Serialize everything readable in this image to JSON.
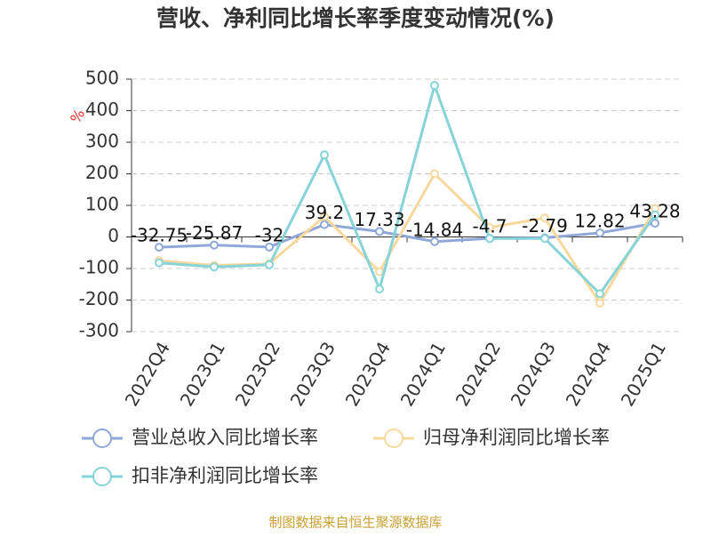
{
  "chart_data": {
    "type": "line",
    "title": "营收、净利同比增长率季度变动情况(%)",
    "ylabel": "%",
    "categories": [
      "2022Q4",
      "2023Q1",
      "2023Q2",
      "2023Q3",
      "2023Q4",
      "2024Q1",
      "2024Q2",
      "2024Q3",
      "2024Q4",
      "2025Q1"
    ],
    "series": [
      {
        "name": "营业总收入同比增长率",
        "color": "#8fa8d9",
        "values": [
          -32.75,
          -25.87,
          -32,
          39.2,
          17.33,
          -14.84,
          -4.7,
          -2.79,
          12.82,
          43.28
        ],
        "show_labels": true
      },
      {
        "name": "归母净利润同比增长率",
        "color": "#f8d89c",
        "values": [
          -75,
          -90,
          -85,
          65,
          -110,
          200,
          30,
          60,
          -210,
          90
        ]
      },
      {
        "name": "扣非净利润同比增长率",
        "color": "#86d4d8",
        "values": [
          -82,
          -95,
          -88,
          260,
          -165,
          480,
          -5,
          -5,
          -180,
          70
        ]
      }
    ],
    "ylim": [
      -300,
      500
    ],
    "yticks": [
      -300,
      -200,
      -100,
      0,
      100,
      200,
      300,
      400,
      500
    ],
    "grid": true,
    "source": "制图数据来自恒生聚源数据库"
  }
}
